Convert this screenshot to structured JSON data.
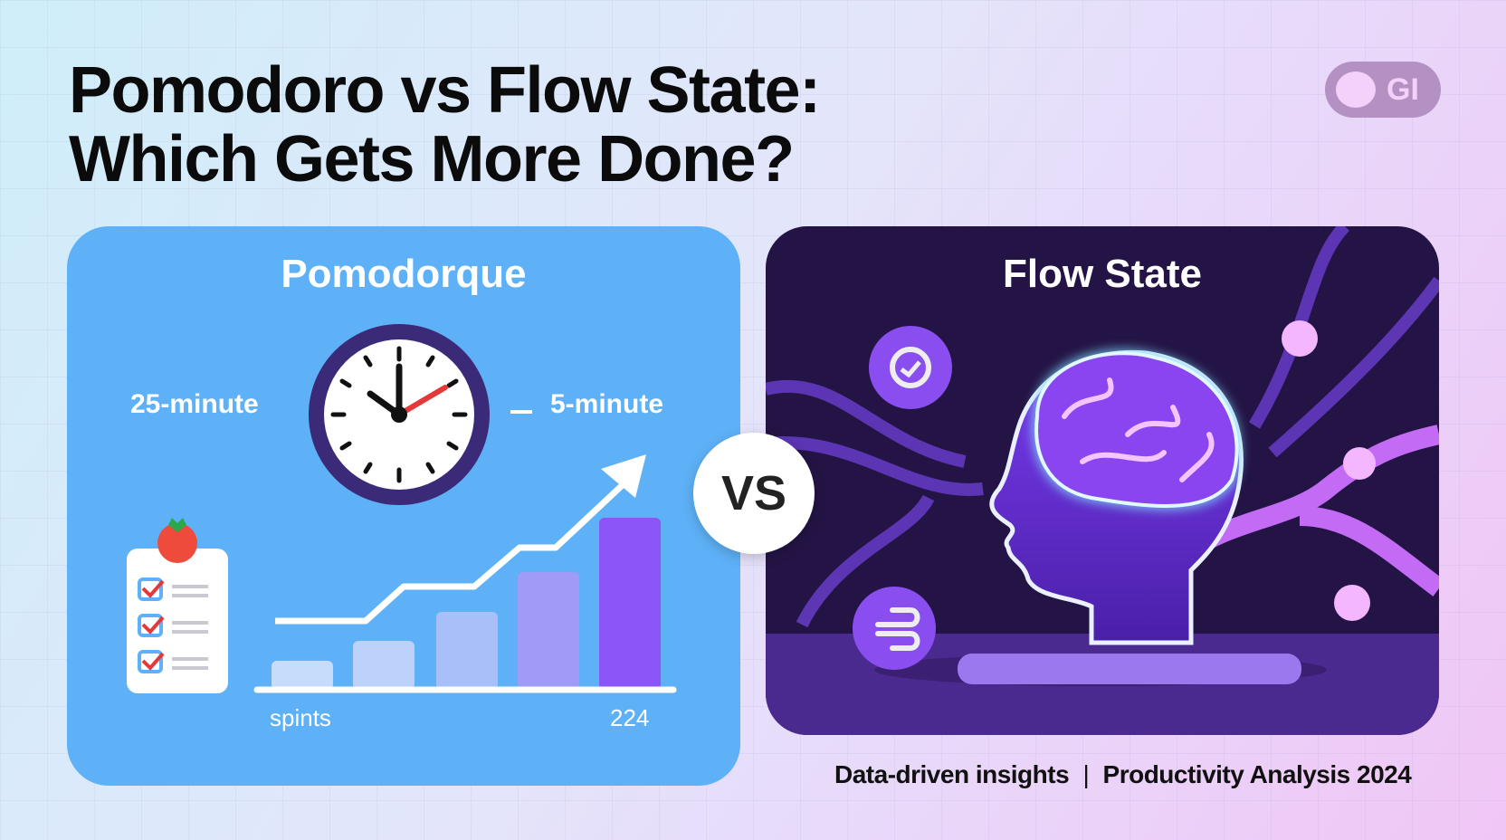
{
  "header": {
    "title_line1": "Pomodoro vs Flow State:",
    "title_line2": "Which Gets More Done?",
    "logo_text": "GI"
  },
  "pomodoro": {
    "title": "Pomodorque",
    "work_label": "25-minute",
    "break_label": "5-minute",
    "x_left_label": "spints",
    "x_right_label": "224",
    "bar_color": "#8b55f7"
  },
  "vs_label": "VS",
  "flow": {
    "title": "Flow State",
    "glow_color": "#7ff0ff"
  },
  "footer": {
    "left": "Data-driven insights",
    "separator": "|",
    "right": "Productivity Analysis 2024"
  }
}
